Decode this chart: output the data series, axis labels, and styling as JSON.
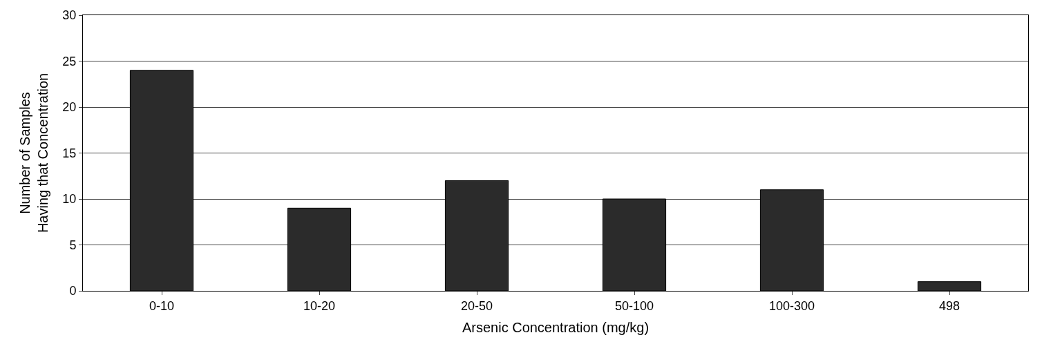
{
  "chart_data": {
    "type": "bar",
    "xlabel": "Arsenic Concentration (mg/kg)",
    "ylabel": "Number of Samples\nHaving that Concentration",
    "categories": [
      "0-10",
      "10-20",
      "20-50",
      "50-100",
      "100-300",
      "498"
    ],
    "values": [
      24,
      9,
      12,
      10,
      11,
      1
    ],
    "color": "#2b2b2b",
    "ylim": [
      0,
      30
    ],
    "yticks": [
      0,
      5,
      10,
      15,
      20,
      25,
      30
    ],
    "grid": "y"
  }
}
